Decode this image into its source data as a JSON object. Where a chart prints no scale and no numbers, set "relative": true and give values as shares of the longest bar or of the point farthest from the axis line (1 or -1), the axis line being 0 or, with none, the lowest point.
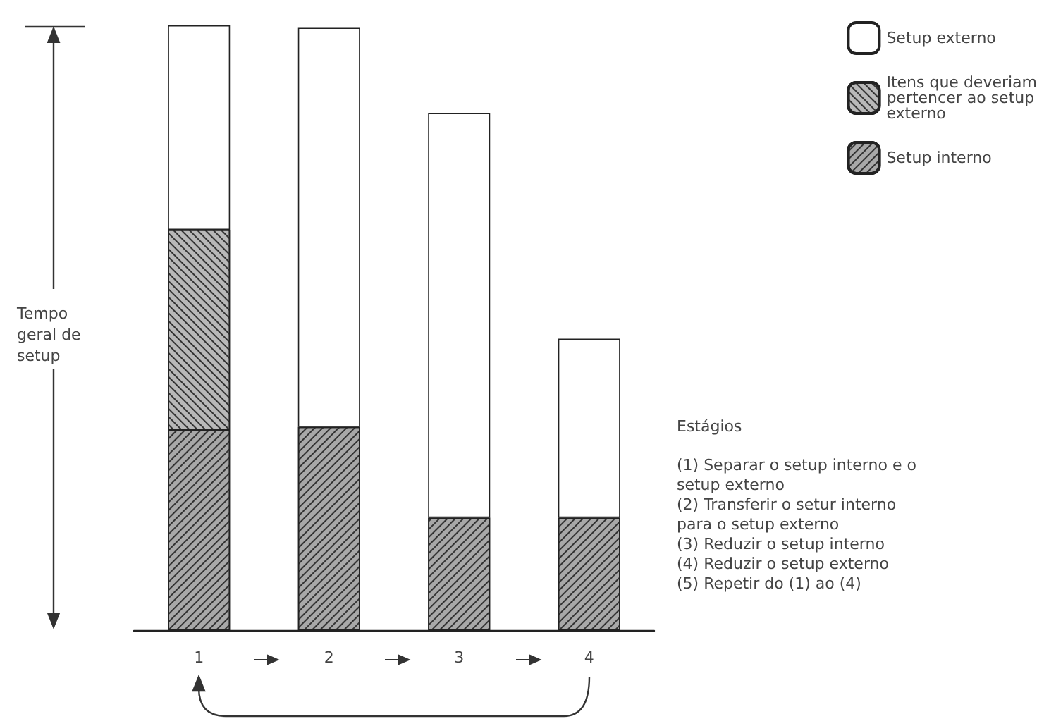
{
  "chart_data": {
    "type": "bar",
    "stacked": true,
    "relative": true,
    "categories": [
      "1",
      "2",
      "3",
      "4"
    ],
    "series": [
      {
        "name": "Setup interno",
        "color": "#a8a8a8",
        "values": [
          0.331,
          0.336,
          0.186,
          0.186
        ]
      },
      {
        "name": "Itens que deveriam pertencer ao setup externo",
        "color": "#b8b8b8",
        "values": [
          0.331,
          null,
          null,
          null
        ]
      },
      {
        "name": "Setup externo",
        "color": "#ffffff",
        "values": [
          0.338,
          0.66,
          0.669,
          0.296
        ]
      }
    ],
    "legend": "top right",
    "annotations": [
      "Tempo geral de setup",
      "Estágios",
      "(1) Separar o setup interno e o setup externo",
      "(2) Transferir o setur interno para o setup externo",
      "(3) Reduzir o setup interno",
      "(4) Reduzir o setup externo",
      "(5) Repetir do (1) ao (4)"
    ]
  }
}
